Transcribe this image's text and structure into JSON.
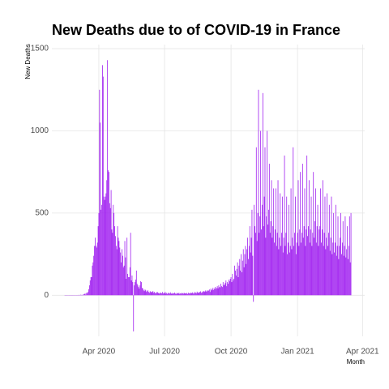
{
  "chart_data": {
    "type": "bar",
    "title": "New Deaths due to of COVID-19 in France",
    "x_label": "Month",
    "y_label": "New Deaths",
    "color": "#a020f0",
    "grid": true,
    "xlim": [
      26,
      459
    ],
    "xticks": [
      {
        "value": 91,
        "label": "Apr 2020"
      },
      {
        "value": 182,
        "label": "Jul 2020"
      },
      {
        "value": 274,
        "label": "Oct 2020"
      },
      {
        "value": 366,
        "label": "Jan 2021"
      },
      {
        "value": 456,
        "label": "Apr 2021"
      }
    ],
    "ylim": [
      -250,
      1525
    ],
    "yticks": [
      0,
      500,
      1000,
      1500
    ],
    "x": [
      44,
      45,
      46,
      47,
      48,
      49,
      50,
      51,
      52,
      53,
      54,
      55,
      56,
      57,
      58,
      59,
      60,
      61,
      62,
      63,
      64,
      65,
      66,
      67,
      68,
      69,
      70,
      71,
      72,
      73,
      74,
      75,
      76,
      77,
      78,
      79,
      80,
      81,
      82,
      83,
      84,
      85,
      86,
      87,
      88,
      89,
      90,
      91,
      92,
      93,
      94,
      95,
      96,
      97,
      98,
      99,
      100,
      101,
      102,
      103,
      104,
      105,
      106,
      107,
      108,
      109,
      110,
      111,
      112,
      113,
      114,
      115,
      116,
      117,
      118,
      119,
      120,
      121,
      122,
      123,
      124,
      125,
      126,
      127,
      128,
      129,
      130,
      131,
      132,
      133,
      134,
      135,
      136,
      137,
      138,
      139,
      140,
      141,
      142,
      143,
      144,
      145,
      146,
      147,
      148,
      149,
      150,
      151,
      152,
      153,
      154,
      155,
      156,
      157,
      158,
      159,
      160,
      161,
      162,
      163,
      164,
      165,
      166,
      167,
      168,
      169,
      170,
      171,
      172,
      173,
      174,
      175,
      176,
      177,
      178,
      179,
      180,
      181,
      182,
      183,
      184,
      185,
      186,
      187,
      188,
      189,
      190,
      191,
      192,
      193,
      194,
      195,
      196,
      197,
      198,
      199,
      200,
      201,
      202,
      203,
      204,
      205,
      206,
      207,
      208,
      209,
      210,
      211,
      212,
      213,
      214,
      215,
      216,
      217,
      218,
      219,
      220,
      221,
      222,
      223,
      224,
      225,
      226,
      227,
      228,
      229,
      230,
      231,
      232,
      233,
      234,
      235,
      236,
      237,
      238,
      239,
      240,
      241,
      242,
      243,
      244,
      245,
      246,
      247,
      248,
      249,
      250,
      251,
      252,
      253,
      254,
      255,
      256,
      257,
      258,
      259,
      260,
      261,
      262,
      263,
      264,
      265,
      266,
      267,
      268,
      269,
      270,
      271,
      272,
      273,
      274,
      275,
      276,
      277,
      278,
      279,
      280,
      281,
      282,
      283,
      284,
      285,
      286,
      287,
      288,
      289,
      290,
      291,
      292,
      293,
      294,
      295,
      296,
      297,
      298,
      299,
      300,
      301,
      302,
      303,
      304,
      305,
      306,
      307,
      308,
      309,
      310,
      311,
      312,
      313,
      314,
      315,
      316,
      317,
      318,
      319,
      320,
      321,
      322,
      323,
      324,
      325,
      326,
      327,
      328,
      329,
      330,
      331,
      332,
      333,
      334,
      335,
      336,
      337,
      338,
      339,
      340,
      341,
      342,
      343,
      344,
      345,
      346,
      347,
      348,
      349,
      350,
      351,
      352,
      353,
      354,
      355,
      356,
      357,
      358,
      359,
      360,
      361,
      362,
      363,
      364,
      365,
      366,
      367,
      368,
      369,
      370,
      371,
      372,
      373,
      374,
      375,
      376,
      377,
      378,
      379,
      380,
      381,
      382,
      383,
      384,
      385,
      386,
      387,
      388,
      389,
      390,
      391,
      392,
      393,
      394,
      395,
      396,
      397,
      398,
      399,
      400,
      401,
      402,
      403,
      404,
      405,
      406,
      407,
      408,
      409,
      410,
      411,
      412,
      413,
      414,
      415,
      416,
      417,
      418,
      419,
      420,
      421,
      422,
      423,
      424,
      425,
      426,
      427,
      428,
      429,
      430,
      431,
      432,
      433,
      434,
      435,
      436,
      437,
      438,
      439,
      440
    ],
    "values": [
      0,
      0,
      0,
      0,
      1,
      0,
      0,
      0,
      0,
      0,
      0,
      0,
      1,
      0,
      0,
      1,
      0,
      1,
      0,
      2,
      1,
      2,
      3,
      2,
      2,
      3,
      5,
      7,
      11,
      3,
      15,
      12,
      20,
      36,
      60,
      90,
      110,
      110,
      180,
      200,
      240,
      300,
      350,
      300,
      290,
      320,
      420,
      500,
      1250,
      1050,
      520,
      550,
      1400,
      1330,
      600,
      580,
      600,
      620,
      700,
      1430,
      760,
      750,
      560,
      530,
      640,
      400,
      380,
      550,
      500,
      420,
      360,
      300,
      280,
      420,
      350,
      330,
      290,
      260,
      200,
      280,
      240,
      170,
      180,
      330,
      230,
      100,
      350,
      130,
      110,
      110,
      170,
      380,
      90,
      120,
      80,
      -220,
      60,
      80,
      95,
      150,
      70,
      60,
      50,
      40,
      60,
      85,
      80,
      45,
      40,
      30,
      25,
      35,
      30,
      20,
      25,
      30,
      20,
      15,
      25,
      20,
      18,
      22,
      25,
      15,
      20,
      14,
      12,
      18,
      20,
      15,
      12,
      10,
      16,
      14,
      12,
      20,
      10,
      15,
      12,
      20,
      10,
      14,
      8,
      15,
      12,
      10,
      18,
      12,
      8,
      14,
      10,
      12,
      16,
      10,
      8,
      14,
      12,
      10,
      15,
      8,
      12,
      10,
      14,
      12,
      9,
      15,
      11,
      12,
      10,
      14,
      8,
      15,
      12,
      10,
      16,
      12,
      14,
      18,
      10,
      12,
      20,
      15,
      12,
      22,
      16,
      14,
      18,
      20,
      24,
      15,
      18,
      22,
      26,
      20,
      24,
      30,
      22,
      25,
      30,
      28,
      35,
      20,
      40,
      30,
      35,
      45,
      32,
      40,
      50,
      38,
      45,
      55,
      42,
      60,
      50,
      48,
      70,
      55,
      50,
      80,
      60,
      65,
      75,
      90,
      55,
      80,
      70,
      95,
      85,
      100,
      110,
      80,
      130,
      90,
      100,
      180,
      150,
      120,
      160,
      200,
      110,
      180,
      220,
      150,
      250,
      140,
      210,
      280,
      170,
      250,
      300,
      190,
      280,
      350,
      220,
      300,
      420,
      260,
      350,
      520,
      240,
      -40,
      550,
      420,
      380,
      900,
      330,
      500,
      1250,
      380,
      480,
      1000,
      400,
      550,
      1230,
      420,
      600,
      900,
      350,
      480,
      1000,
      430,
      520,
      800,
      380,
      450,
      700,
      350,
      420,
      650,
      320,
      400,
      650,
      300,
      380,
      700,
      280,
      350,
      620,
      300,
      380,
      600,
      260,
      350,
      850,
      300,
      380,
      600,
      250,
      320,
      550,
      260,
      300,
      650,
      280,
      350,
      900,
      300,
      380,
      600,
      250,
      320,
      380,
      700,
      300,
      400,
      750,
      320,
      380,
      800,
      350,
      420,
      650,
      300,
      400,
      850,
      360,
      420,
      700,
      320,
      400,
      600,
      300,
      380,
      750,
      350,
      450,
      650,
      320,
      420,
      550,
      300,
      400,
      420,
      650,
      320,
      400,
      700,
      300,
      380,
      600,
      280,
      350,
      620,
      300,
      380,
      550,
      270,
      350,
      600,
      250,
      320,
      500,
      260,
      320,
      550,
      240,
      300,
      480,
      220,
      300,
      350,
      500,
      250,
      320,
      450,
      240,
      300,
      480,
      230,
      280,
      420,
      220,
      300,
      480,
      200,
      500
    ]
  }
}
